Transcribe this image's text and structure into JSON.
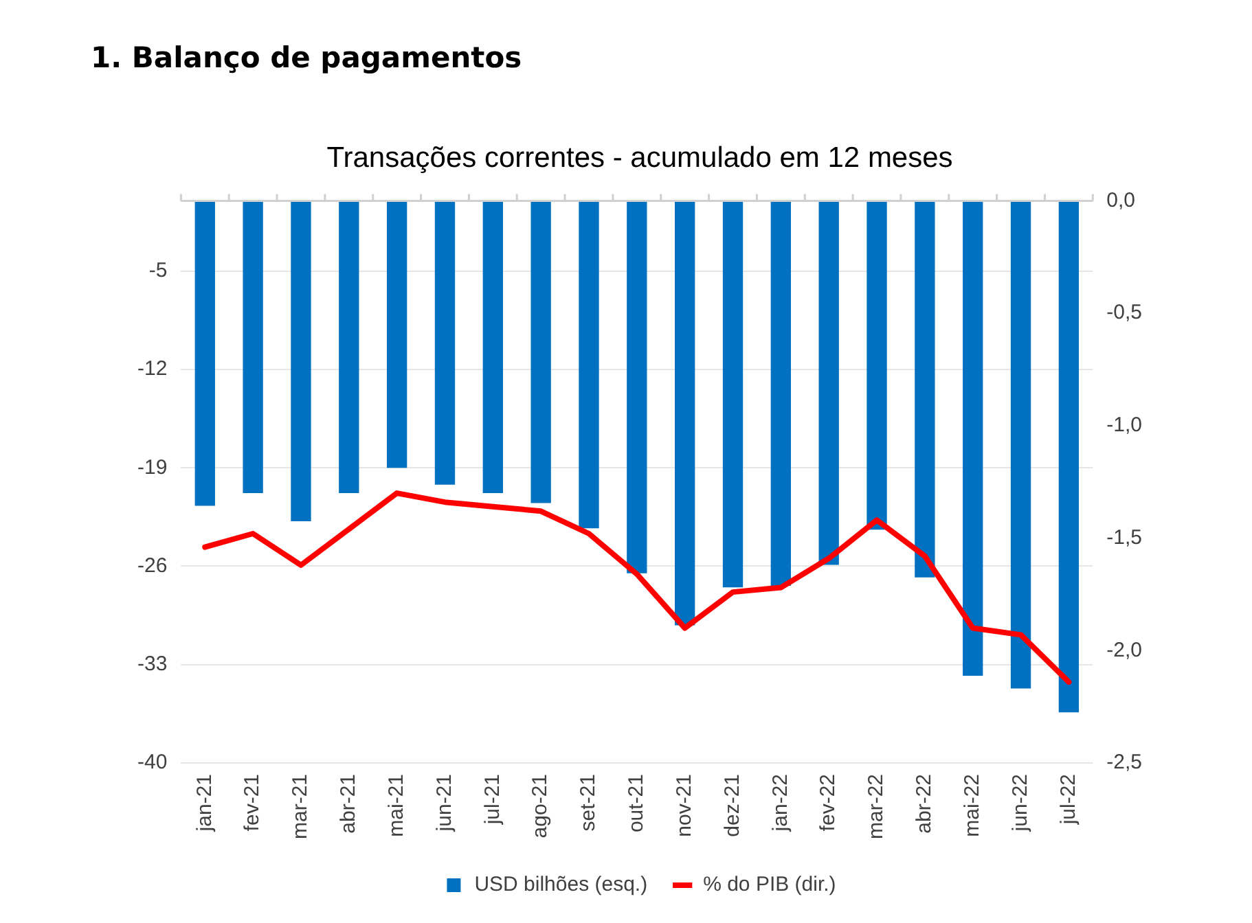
{
  "chart_data": {
    "type": "bar",
    "title": "1. Balanço de pagamentos",
    "subtitle": "Transações correntes - acumulado em 12 meses",
    "categories": [
      "jan-21",
      "fev-21",
      "mar-21",
      "abr-21",
      "mai-21",
      "jun-21",
      "jul-21",
      "ago-21",
      "set-21",
      "out-21",
      "nov-21",
      "dez-21",
      "jan-22",
      "fev-22",
      "mar-22",
      "abr-22",
      "mai-22",
      "jun-22",
      "jul-22"
    ],
    "series": [
      {
        "name": "USD bilhões (esq.)",
        "color": "#0070c0",
        "values": [
          -21.7,
          -20.8,
          -22.8,
          -20.8,
          -19.0,
          -20.2,
          -20.8,
          -21.5,
          -23.3,
          -26.5,
          -30.2,
          -27.5,
          -27.4,
          -25.9,
          -23.4,
          -26.8,
          -33.8,
          -34.7,
          -36.4
        ]
      },
      {
        "name": "% do PIB (dir.)",
        "type": "line",
        "axis": "y2",
        "color": "#ff0000",
        "values": [
          -1.54,
          -1.48,
          -1.62,
          -1.46,
          -1.3,
          -1.34,
          -1.36,
          -1.38,
          -1.48,
          -1.66,
          -1.9,
          -1.74,
          -1.72,
          -1.59,
          -1.42,
          -1.58,
          -1.9,
          -1.93,
          -2.14
        ]
      }
    ],
    "ylim": [
      -40,
      0
    ],
    "yticks": [
      -40,
      -33,
      -26,
      -19,
      -12,
      -5
    ],
    "y2lim": [
      -2.5,
      0
    ],
    "y2ticks": [
      {
        "value": -2.5,
        "label": "-2,5"
      },
      {
        "value": -2.0,
        "label": "-2,0"
      },
      {
        "value": -1.5,
        "label": "-1,5"
      },
      {
        "value": -1.0,
        "label": "-1,0"
      },
      {
        "value": -0.5,
        "label": "-0,5"
      },
      {
        "value": 0,
        "label": "0,0"
      }
    ],
    "grid": "y",
    "legend": "bottom",
    "marker": "none"
  }
}
